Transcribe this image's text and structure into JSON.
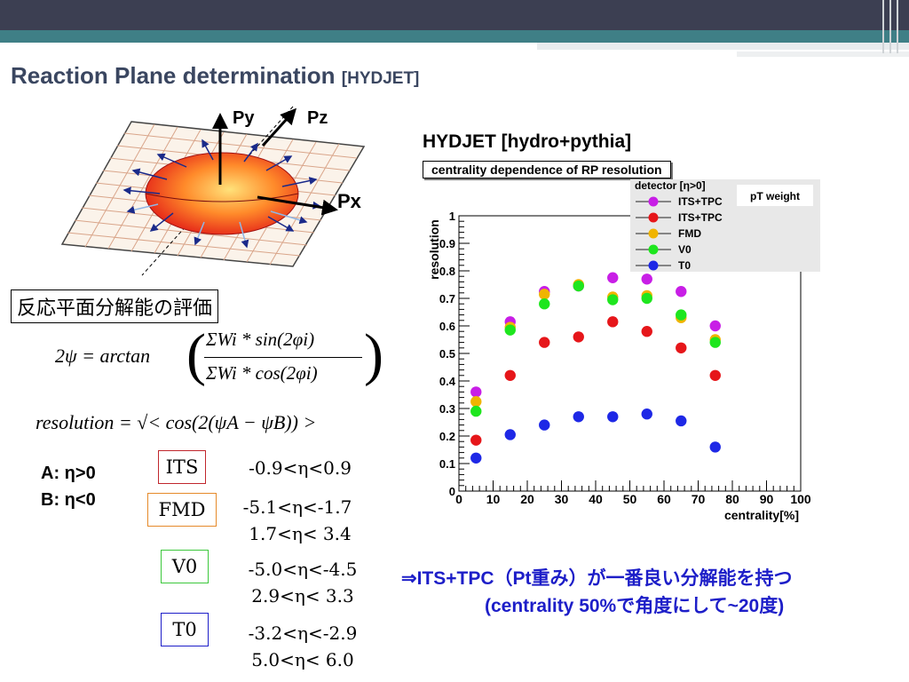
{
  "slide": {
    "title": "Reaction Plane determination",
    "title_tag": "[HYDJET]",
    "japanese_label": "反応平面分解能の評価",
    "formula_psi_lhs": "2ψ = arctan",
    "formula_num": "ΣWi * sin(2φi)",
    "formula_den": "ΣWi * cos(2φi)",
    "formula_res": "resolution = √< cos(2(ψA − ψB)) >",
    "axes_labels": {
      "py": "Py",
      "pz": "Pz",
      "px": "Px"
    },
    "ab": {
      "a_label": "A:",
      "a_cond": "η>0",
      "b_label": "B:",
      "b_cond": "η<0"
    },
    "detectors": [
      {
        "name": "ITS",
        "range1": "-0.9<η<0.9",
        "range2": "",
        "border": "#c0272d"
      },
      {
        "name": "FMD",
        "range1": "-5.1<η<-1.7",
        "range2": "1.7<η< 3.4",
        "border": "#e58a2a"
      },
      {
        "name": "V0",
        "range1": "-5.0<η<-4.5",
        "range2": "2.9<η< 3.3",
        "border": "#3cc83c"
      },
      {
        "name": "T0",
        "range1": "-3.2<η<-2.9",
        "range2": "5.0<η< 6.0",
        "border": "#1d1ec8"
      }
    ],
    "conclusion_line1": "⇒ITS+TPC（Pt重み）が一番良い分解能を持つ",
    "conclusion_line2": "(centrality 50%で角度にして~20度)"
  },
  "chart_data": {
    "type": "scatter",
    "title": "HYDJET [hydro+pythia]",
    "subtitle": "centrality dependence of RP resolution",
    "xlabel": "centrality[%]",
    "ylabel": "resolution",
    "xlim": [
      0,
      100
    ],
    "ylim": [
      0,
      1
    ],
    "xticks": [
      0,
      10,
      20,
      30,
      40,
      50,
      60,
      70,
      80,
      90,
      100
    ],
    "yticks": [
      0,
      0.1,
      0.2,
      0.3,
      0.4,
      0.5,
      0.6,
      0.7,
      0.8,
      0.9,
      1
    ],
    "legend_title": "detector [η>0]",
    "pt_weight_label": "pT weight",
    "legend_placement": "top-right",
    "x": [
      5,
      15,
      25,
      35,
      45,
      55,
      65,
      75
    ],
    "series": [
      {
        "name": "ITS+TPC",
        "color": "#c81ee6",
        "values": [
          0.36,
          0.615,
          0.725,
          0.745,
          0.775,
          0.77,
          0.725,
          0.6
        ]
      },
      {
        "name": "ITS+TPC",
        "color": "#e6161a",
        "values": [
          0.185,
          0.42,
          0.54,
          0.56,
          0.615,
          0.58,
          0.52,
          0.42
        ]
      },
      {
        "name": "FMD",
        "color": "#f0b400",
        "values": [
          0.325,
          0.595,
          0.715,
          0.75,
          0.705,
          0.71,
          0.63,
          0.55
        ]
      },
      {
        "name": "V0",
        "color": "#1ee61e",
        "values": [
          0.29,
          0.585,
          0.68,
          0.745,
          0.695,
          0.7,
          0.64,
          0.54
        ]
      },
      {
        "name": "T0",
        "color": "#1e28e6",
        "values": [
          0.12,
          0.205,
          0.24,
          0.27,
          0.27,
          0.28,
          0.255,
          0.16
        ]
      }
    ]
  }
}
